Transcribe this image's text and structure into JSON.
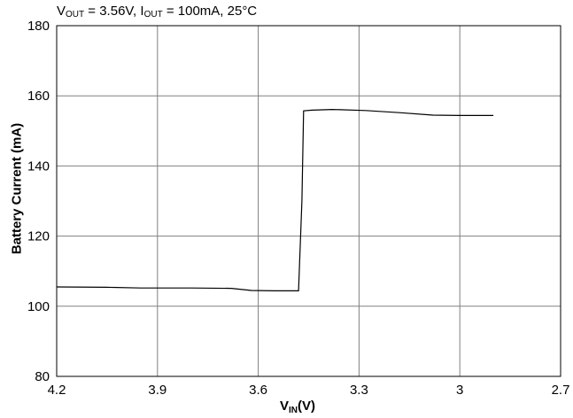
{
  "chart_data": {
    "type": "line",
    "title_parts": {
      "v_main": "V",
      "v_sub": "OUT",
      "v_rest": " = 3.56V, ",
      "i_main": "I",
      "i_sub": "OUT",
      "i_rest": " = 100mA, 25°C"
    },
    "xlabel_parts": {
      "main": "V",
      "sub": "IN",
      "rest": "(V)"
    },
    "ylabel": "Battery Current (mA)",
    "xlim": [
      4.2,
      2.7
    ],
    "ylim": [
      80,
      180
    ],
    "x_ticks": [
      4.2,
      3.9,
      3.6,
      3.3,
      3,
      2.7
    ],
    "x_tick_labels": [
      "4.2",
      "3.9",
      "3.6",
      "3.3",
      "3",
      "2.7"
    ],
    "y_ticks": [
      80,
      100,
      120,
      140,
      160,
      180
    ],
    "y_tick_labels": [
      "80",
      "100",
      "120",
      "140",
      "160",
      "180"
    ],
    "grid": true,
    "series": [
      {
        "color": "#000000",
        "x": [
          4.2,
          4.05,
          3.95,
          3.8,
          3.68,
          3.62,
          3.55,
          3.48,
          3.47,
          3.465,
          3.44,
          3.38,
          3.28,
          3.18,
          3.08,
          3.0,
          2.9
        ],
        "y": [
          105.5,
          105.4,
          105.2,
          105.2,
          105.1,
          104.5,
          104.4,
          104.4,
          130,
          155.7,
          155.9,
          156.1,
          155.8,
          155.2,
          154.5,
          154.4,
          154.4
        ]
      }
    ]
  }
}
